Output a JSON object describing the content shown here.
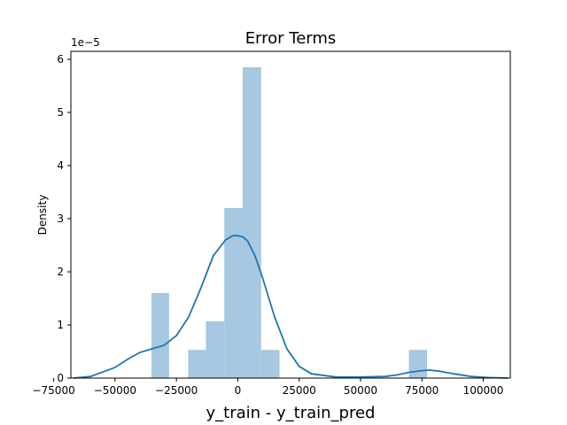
{
  "chart_data": {
    "type": "bar",
    "title": "Error Terms",
    "xlabel": "y_train - y_train_pred",
    "ylabel": "Density",
    "y_offset_label": "1e−5",
    "y_scale": 1e-05,
    "xlim": [
      -68000,
      111000
    ],
    "ylim": [
      0,
      6.15
    ],
    "x_ticks": [
      {
        "value": -75000,
        "label": "−75000"
      },
      {
        "value": -50000,
        "label": "−50000"
      },
      {
        "value": -25000,
        "label": "−25000"
      },
      {
        "value": 0,
        "label": "0"
      },
      {
        "value": 25000,
        "label": "25000"
      },
      {
        "value": 50000,
        "label": "50000"
      },
      {
        "value": 75000,
        "label": "75000"
      },
      {
        "value": 100000,
        "label": "100000"
      }
    ],
    "y_ticks": [
      {
        "value": 0,
        "label": "0"
      },
      {
        "value": 1,
        "label": "1"
      },
      {
        "value": 2,
        "label": "2"
      },
      {
        "value": 3,
        "label": "3"
      },
      {
        "value": 4,
        "label": "4"
      },
      {
        "value": 5,
        "label": "5"
      },
      {
        "value": 6,
        "label": "6"
      }
    ],
    "histogram": {
      "bins": [
        {
          "x0": -35200,
          "x1": -28000,
          "density": 1.6
        },
        {
          "x0": -20200,
          "x1": -13000,
          "density": 0.53
        },
        {
          "x0": -13000,
          "x1": -5500,
          "density": 1.07
        },
        {
          "x0": -5500,
          "x1": 2000,
          "density": 3.2
        },
        {
          "x0": 2000,
          "x1": 9500,
          "density": 5.85
        },
        {
          "x0": 9500,
          "x1": 17000,
          "density": 0.53
        },
        {
          "x0": 69700,
          "x1": 77100,
          "density": 0.53
        }
      ],
      "color": "#a6c8e0"
    },
    "kde": {
      "color": "#1f77b4",
      "x": [
        -67000,
        -60000,
        -50000,
        -45000,
        -40000,
        -35000,
        -30000,
        -25000,
        -20000,
        -15000,
        -10000,
        -5000,
        -2000,
        0,
        2000,
        4000,
        7000,
        10000,
        15000,
        20000,
        25000,
        30000,
        40000,
        50000,
        60000,
        65000,
        70000,
        75000,
        78000,
        82000,
        88000,
        95000,
        102000,
        110000
      ],
      "y": [
        0.0,
        0.03,
        0.2,
        0.35,
        0.48,
        0.55,
        0.62,
        0.8,
        1.15,
        1.7,
        2.3,
        2.6,
        2.68,
        2.68,
        2.66,
        2.58,
        2.3,
        1.9,
        1.15,
        0.55,
        0.22,
        0.08,
        0.02,
        0.02,
        0.03,
        0.06,
        0.11,
        0.14,
        0.15,
        0.13,
        0.08,
        0.03,
        0.01,
        0.0
      ]
    },
    "grid": false,
    "legend": "none"
  }
}
